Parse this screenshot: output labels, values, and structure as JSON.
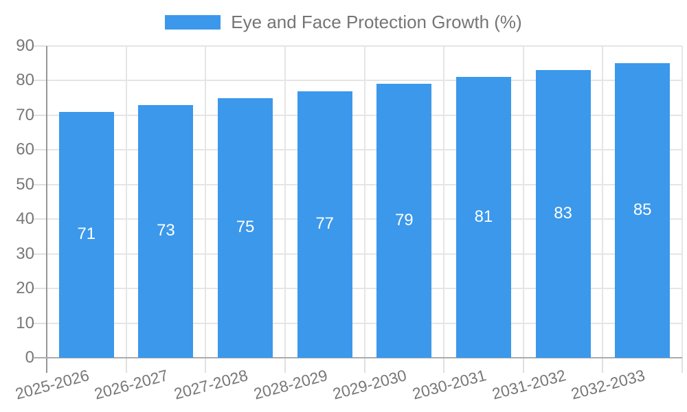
{
  "legend": {
    "label": "Eye and Face Protection Growth (%)"
  },
  "chart_data": {
    "type": "bar",
    "title": "",
    "series_name": "Eye and Face Protection Growth (%)",
    "categories": [
      "2025-2026",
      "2026-2027",
      "2027-2028",
      "2028-2029",
      "2029-2030",
      "2030-2031",
      "2031-2032",
      "2032-2033"
    ],
    "values": [
      71,
      73,
      75,
      77,
      79,
      81,
      83,
      85
    ],
    "value_labels": [
      "71",
      "73",
      "75",
      "77",
      "79",
      "81",
      "83",
      "85"
    ],
    "xlabel": "",
    "ylabel": "",
    "ylim": [
      0,
      90
    ],
    "ytick_step": 10,
    "ytick_labels": [
      "0",
      "10",
      "20",
      "30",
      "40",
      "50",
      "60",
      "70",
      "80",
      "90"
    ],
    "grid": true,
    "legend_position": "top",
    "x_label_rotation_deg": -15
  },
  "colors": {
    "bar": "#3B98EB",
    "value_label": "#ffffff",
    "axis_text": "#777777",
    "legend_text": "#757575",
    "gridline": "#E5E5E5",
    "axis_line_y": "#969696",
    "axis_line_x": "#ABABAB",
    "background": "#ffffff"
  }
}
